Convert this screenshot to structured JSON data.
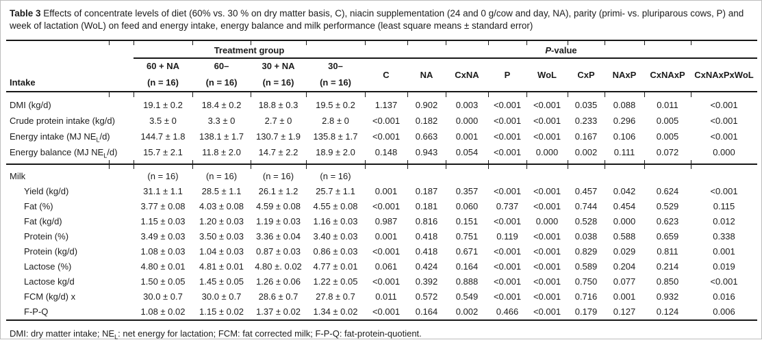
{
  "title": {
    "label": "Table 3",
    "text": "Effects of concentrate levels of diet (60% vs. 30 % on dry matter basis, C), niacin supplementation (24 and 0 g/cow and day, NA), parity (primi- vs. pluriparous cows, P) and week of lactation (WoL) on feed and energy intake, energy balance and milk performance (least square means ± standard error)"
  },
  "table": {
    "header": {
      "treatment_group_label": "Treatment group",
      "pvalue_label_italic": "P",
      "pvalue_label_rest": "-value",
      "intake_label": "Intake",
      "treatment_cols": [
        {
          "name": "60 + NA",
          "n": "(n = 16)"
        },
        {
          "name": "60–",
          "n": "(n = 16)"
        },
        {
          "name": "30 + NA",
          "n": "(n = 16)"
        },
        {
          "name": "30–",
          "n": "(n = 16)"
        }
      ],
      "pvalue_cols": [
        "C",
        "NA",
        "CxNA",
        "P",
        "WoL",
        "CxP",
        "NAxP",
        "CxNAxP",
        "CxNAxPxWoL"
      ]
    },
    "sections": [
      {
        "name": "intake",
        "rows": [
          {
            "label": "DMI (kg/d)",
            "indent": false,
            "values": [
              "19.1 ± 0.2",
              "18.4 ± 0.2",
              "18.8 ± 0.3",
              "19.5 ± 0.2"
            ],
            "p": [
              "1.137",
              "0.902",
              "0.003",
              "<0.001",
              "<0.001",
              "0.035",
              "0.088",
              "0.011",
              "<0.001"
            ]
          },
          {
            "label": "Crude protein intake (kg/d)",
            "indent": false,
            "values": [
              "3.5 ± 0",
              "3.3 ± 0",
              "2.7 ± 0",
              "2.8 ± 0"
            ],
            "p": [
              "<0.001",
              "0.182",
              "0.000",
              "<0.001",
              "<0.001",
              "0.233",
              "0.296",
              "0.005",
              "<0.001"
            ]
          },
          {
            "label_parts": [
              "Energy intake (MJ NE",
              "L",
              "/d)"
            ],
            "indent": false,
            "values": [
              "144.7 ± 1.8",
              "138.1 ± 1.7",
              "130.7 ± 1.9",
              "135.8 ± 1.7"
            ],
            "p": [
              "<0.001",
              "0.663",
              "0.001",
              "<0.001",
              "<0.001",
              "0.167",
              "0.106",
              "0.005",
              "<0.001"
            ]
          },
          {
            "label_parts": [
              "Energy balance (MJ NE",
              "L",
              "/d)"
            ],
            "indent": false,
            "values": [
              "15.7 ± 2.1",
              "11.8 ± 2.0",
              "14.7 ± 2.2",
              "18.9 ± 2.0"
            ],
            "p": [
              "0.148",
              "0.943",
              "0.054",
              "<0.001",
              "0.000",
              "0.002",
              "0.111",
              "0.072",
              "0.000"
            ]
          }
        ]
      },
      {
        "name": "milk",
        "rows": [
          {
            "label": "Milk",
            "indent": false,
            "values": [
              "(n = 16)",
              "(n = 16)",
              "(n = 16)",
              "(n = 16)"
            ],
            "p": null
          },
          {
            "label": "Yield (kg/d)",
            "indent": true,
            "values": [
              "31.1 ± 1.1",
              "28.5 ± 1.1",
              "26.1 ± 1.2",
              "25.7 ± 1.1"
            ],
            "p": [
              "0.001",
              "0.187",
              "0.357",
              "<0.001",
              "<0.001",
              "0.457",
              "0.042",
              "0.624",
              "<0.001"
            ]
          },
          {
            "label": "Fat (%)",
            "indent": true,
            "values": [
              "3.77 ± 0.08",
              "4.03 ± 0.08",
              "4.59 ± 0.08",
              "4.55 ± 0.08"
            ],
            "p": [
              "<0.001",
              "0.181",
              "0.060",
              "0.737",
              "<0.001",
              "0.744",
              "0.454",
              "0.529",
              "0.115"
            ]
          },
          {
            "label": "Fat (kg/d)",
            "indent": true,
            "values": [
              "1.15 ± 0.03",
              "1.20 ± 0.03",
              "1.19 ± 0.03",
              "1.16 ± 0.03"
            ],
            "p": [
              "0.987",
              "0.816",
              "0.151",
              "<0.001",
              "0.000",
              "0.528",
              "0.000",
              "0.623",
              "0.012"
            ]
          },
          {
            "label": "Protein (%)",
            "indent": true,
            "values": [
              "3.49 ± 0.03",
              "3.50 ± 0.03",
              "3.36 ± 0.04",
              "3.40 ± 0.03"
            ],
            "p": [
              "0.001",
              "0.418",
              "0.751",
              "0.119",
              "<0.001",
              "0.038",
              "0.588",
              "0.659",
              "0.338"
            ]
          },
          {
            "label": "Protein (kg/d)",
            "indent": true,
            "values": [
              "1.08 ± 0.03",
              "1.04 ± 0.03",
              "0.87 ± 0.03",
              "0.86 ± 0.03"
            ],
            "p": [
              "<0.001",
              "0.418",
              "0.671",
              "<0.001",
              "<0.001",
              "0.829",
              "0.029",
              "0.811",
              "0.001"
            ]
          },
          {
            "label": "Lactose (%)",
            "indent": true,
            "values": [
              "4.80 ± 0.01",
              "4.81 ± 0.01",
              "4.80 ±. 0.02",
              "4.77 ± 0.01"
            ],
            "p": [
              "0.061",
              "0.424",
              "0.164",
              "<0.001",
              "<0.001",
              "0.589",
              "0.204",
              "0.214",
              "0.019"
            ]
          },
          {
            "label": "Lactose kg/d",
            "indent": true,
            "values": [
              "1.50 ± 0.05",
              "1.45 ± 0.05",
              "1.26 ± 0.06",
              "1.22 ± 0.05"
            ],
            "p": [
              "<0.001",
              "0.392",
              "0.888",
              "<0.001",
              "<0.001",
              "0.750",
              "0.077",
              "0.850",
              "<0.001"
            ]
          },
          {
            "label": "FCM (kg/d) x",
            "indent": true,
            "values": [
              "30.0 ± 0.7",
              "30.0 ± 0.7",
              "28.6 ± 0.7",
              "27.8 ± 0.7"
            ],
            "p": [
              "0.011",
              "0.572",
              "0.549",
              "<0.001",
              "<0.001",
              "0.716",
              "0.001",
              "0.932",
              "0.016"
            ]
          },
          {
            "label": "F-P-Q",
            "indent": true,
            "values": [
              "1.08 ± 0.02",
              "1.15 ± 0.02",
              "1.37 ± 0.02",
              "1.34 ± 0.02"
            ],
            "p": [
              "<0.001",
              "0.164",
              "0.002",
              "0.466",
              "<0.001",
              "0.179",
              "0.127",
              "0.124",
              "0.006"
            ]
          }
        ]
      }
    ]
  },
  "footnote": {
    "pre": "DMI: dry matter intake; NE",
    "sub": "L",
    "post": ": net energy for lactation; FCM: fat corrected milk; F-P-Q: fat-protein-quotient."
  }
}
